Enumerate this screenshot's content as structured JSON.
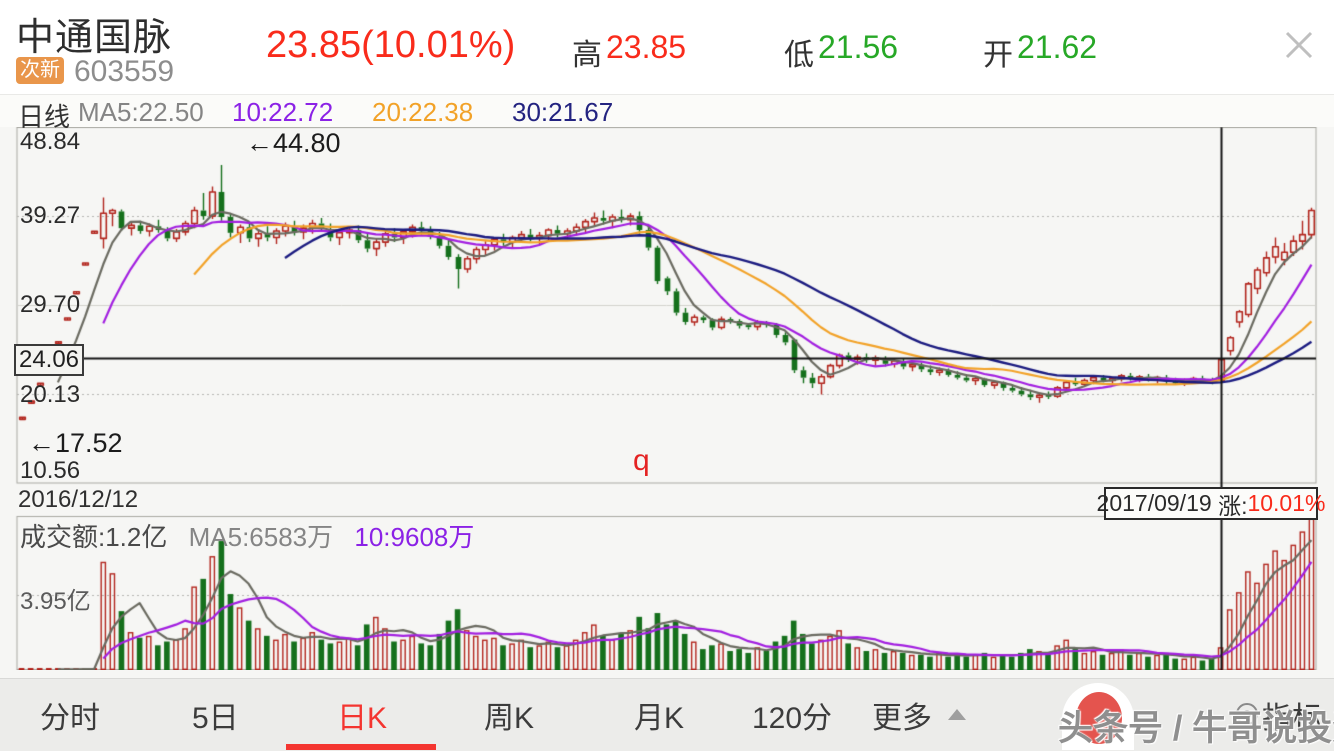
{
  "header": {
    "title": "中通国脉",
    "badge": "次新",
    "code": "603559",
    "price": "23.85",
    "change": "(10.01%)",
    "high_label": "高",
    "high": "23.85",
    "low_label": "低",
    "low": "21.56",
    "open_label": "开",
    "open": "21.62",
    "close_icon": "close-x"
  },
  "ma_legend": {
    "period": "日线",
    "ma5": "MA5:22.50",
    "ma10": "10:22.72",
    "ma20": "20:22.38",
    "ma30": "30:21.67"
  },
  "volume_legend": {
    "amount": "成交额:1.2亿",
    "ma5": "MA5:6583万",
    "ma10": "10:9608万"
  },
  "axis": {
    "y_top": "48.84",
    "y_q3": "39.27",
    "y_mid": "29.70",
    "y_q1": "20.13",
    "y_bottom": "10.56",
    "cross_price": "24.06",
    "vol_gridline": "3.95亿",
    "date_left": "2016/12/12",
    "cross_date": "2017/09/19",
    "cross_change_label": "涨:",
    "cross_change_pct": "10.01%"
  },
  "annotations": {
    "high_point": "←44.80",
    "low_point": "←17.52",
    "stray_char": "q"
  },
  "tabs": [
    {
      "label": "分时"
    },
    {
      "label": "5日"
    },
    {
      "label": "日K",
      "selected": true
    },
    {
      "label": "周K"
    },
    {
      "label": "月K"
    },
    {
      "label": "120分"
    },
    {
      "label": "更多",
      "arrow": "up-triangle"
    },
    {
      "label": "指标",
      "icon": "target-circle"
    }
  ],
  "watermark": {
    "text": "头条号 / 牛哥说投资",
    "logo": "toutiao-red-blob"
  },
  "chart_data": {
    "type": "candlestick+volume",
    "title": "中通国脉 603559 日K",
    "y_range": [
      10.56,
      48.84
    ],
    "y_gridlines_dotted": [
      39.27,
      20.13
    ],
    "y_gridline_solid": 29.7,
    "volume_gridline_yi": 3.95,
    "crosshair": {
      "index": 132,
      "price": 24.06,
      "date": "2017/09/19",
      "pct": "10.01%"
    },
    "point_annotations": [
      {
        "index": 22,
        "price": 44.8,
        "text": "←44.80"
      },
      {
        "index": 0,
        "price": 17.52,
        "text": "←17.52"
      }
    ],
    "colors": {
      "up": "#b2251d",
      "down": "#15701c",
      "ma5": "#6a6a60",
      "ma10": "#a21fe0",
      "ma20": "#f2a228",
      "ma30": "#1b1b80",
      "grid_dotted": "#b5b5b0",
      "grid_solid": "#d2d2cc",
      "border": "#a8a8a2",
      "crosshair": "#141414"
    },
    "candles_ohlc": [
      [
        17.52,
        17.52,
        17.52,
        17.52
      ],
      [
        19.27,
        19.27,
        19.27,
        19.27
      ],
      [
        21.2,
        21.2,
        21.2,
        21.2
      ],
      [
        23.32,
        23.32,
        23.32,
        23.32
      ],
      [
        25.65,
        25.65,
        25.65,
        25.65
      ],
      [
        28.22,
        28.22,
        28.22,
        28.22
      ],
      [
        31.04,
        31.04,
        31.04,
        31.04
      ],
      [
        34.14,
        34.14,
        34.14,
        34.14
      ],
      [
        37.56,
        37.56,
        37.56,
        37.56
      ],
      [
        36.9,
        41.3,
        35.8,
        39.6
      ],
      [
        39.6,
        40.1,
        38.2,
        39.9
      ],
      [
        39.8,
        40.0,
        37.7,
        38.0
      ],
      [
        38.0,
        38.6,
        37.2,
        38.3
      ],
      [
        38.3,
        38.8,
        37.4,
        37.7
      ],
      [
        37.7,
        38.5,
        37.1,
        38.2
      ],
      [
        38.2,
        38.9,
        37.5,
        37.8
      ],
      [
        37.8,
        38.1,
        36.6,
        36.9
      ],
      [
        36.9,
        37.9,
        36.5,
        37.6
      ],
      [
        37.6,
        38.8,
        37.2,
        38.5
      ],
      [
        38.5,
        40.3,
        38.0,
        39.9
      ],
      [
        39.9,
        41.8,
        38.9,
        39.3
      ],
      [
        39.3,
        42.5,
        39.0,
        41.9
      ],
      [
        41.9,
        44.8,
        38.8,
        39.2
      ],
      [
        39.2,
        39.6,
        37.0,
        37.5
      ],
      [
        37.5,
        38.4,
        36.4,
        38.1
      ],
      [
        38.1,
        38.6,
        36.5,
        36.9
      ],
      [
        36.9,
        37.9,
        36.0,
        37.4
      ],
      [
        37.4,
        38.2,
        36.6,
        37.0
      ],
      [
        37.0,
        38.0,
        36.3,
        37.7
      ],
      [
        37.7,
        38.6,
        37.1,
        38.2
      ],
      [
        38.2,
        38.8,
        37.2,
        37.6
      ],
      [
        37.6,
        38.4,
        36.8,
        38.0
      ],
      [
        38.0,
        38.9,
        37.4,
        38.5
      ],
      [
        38.5,
        39.1,
        37.6,
        37.9
      ],
      [
        37.9,
        38.5,
        36.6,
        37.0
      ],
      [
        37.0,
        37.8,
        36.2,
        37.5
      ],
      [
        37.5,
        38.2,
        36.9,
        37.8
      ],
      [
        37.8,
        38.3,
        36.4,
        36.7
      ],
      [
        36.7,
        37.4,
        35.4,
        35.8
      ],
      [
        35.8,
        36.9,
        35.0,
        36.5
      ],
      [
        36.5,
        37.8,
        36.0,
        37.4
      ],
      [
        37.4,
        38.0,
        36.5,
        37.0
      ],
      [
        37.0,
        37.9,
        36.3,
        37.6
      ],
      [
        37.6,
        38.4,
        37.0,
        38.1
      ],
      [
        38.1,
        38.7,
        37.3,
        37.7
      ],
      [
        37.7,
        38.2,
        36.8,
        37.1
      ],
      [
        37.1,
        37.6,
        35.8,
        36.1
      ],
      [
        36.1,
        36.8,
        34.6,
        34.9
      ],
      [
        34.9,
        35.2,
        31.5,
        33.6
      ],
      [
        33.6,
        35.0,
        33.2,
        34.7
      ],
      [
        34.7,
        36.0,
        34.2,
        35.7
      ],
      [
        35.7,
        36.6,
        35.0,
        36.2
      ],
      [
        36.2,
        37.0,
        35.6,
        36.8
      ],
      [
        36.8,
        37.4,
        36.1,
        36.5
      ],
      [
        36.5,
        37.2,
        35.9,
        37.0
      ],
      [
        37.0,
        37.7,
        36.4,
        37.3
      ],
      [
        37.3,
        37.9,
        36.6,
        36.9
      ],
      [
        36.9,
        37.6,
        36.2,
        37.2
      ],
      [
        37.2,
        38.0,
        36.7,
        37.8
      ],
      [
        37.8,
        38.3,
        37.0,
        37.4
      ],
      [
        37.4,
        38.0,
        36.8,
        37.7
      ],
      [
        37.7,
        38.5,
        37.2,
        38.1
      ],
      [
        38.1,
        39.0,
        37.6,
        38.7
      ],
      [
        38.7,
        39.7,
        38.2,
        39.1
      ],
      [
        39.1,
        39.9,
        38.4,
        38.8
      ],
      [
        38.8,
        39.5,
        38.0,
        39.2
      ],
      [
        39.2,
        40.0,
        38.6,
        38.9
      ],
      [
        38.9,
        39.6,
        38.3,
        39.3
      ],
      [
        39.3,
        39.8,
        37.4,
        37.8
      ],
      [
        37.8,
        38.2,
        35.6,
        35.9
      ],
      [
        35.9,
        36.1,
        32.0,
        32.3
      ],
      [
        32.6,
        32.8,
        30.8,
        31.2
      ],
      [
        31.2,
        31.5,
        28.6,
        28.9
      ],
      [
        28.9,
        29.4,
        27.6,
        27.9
      ],
      [
        27.9,
        28.7,
        27.5,
        28.4
      ],
      [
        28.4,
        28.6,
        27.8,
        28.1
      ],
      [
        28.1,
        28.3,
        27.0,
        27.3
      ],
      [
        27.3,
        28.5,
        27.1,
        28.2
      ],
      [
        28.2,
        28.4,
        27.7,
        28.0
      ],
      [
        28.0,
        28.2,
        27.2,
        27.5
      ],
      [
        27.5,
        27.8,
        27.1,
        27.4
      ],
      [
        27.4,
        28.1,
        27.0,
        27.8
      ],
      [
        27.8,
        28.0,
        27.3,
        27.6
      ],
      [
        27.6,
        27.8,
        26.2,
        26.5
      ],
      [
        26.5,
        26.8,
        25.4,
        25.7
      ],
      [
        26.0,
        26.1,
        22.4,
        22.7
      ],
      [
        22.7,
        23.1,
        21.3,
        21.9
      ],
      [
        21.9,
        22.4,
        20.8,
        21.3
      ],
      [
        21.3,
        22.3,
        20.1,
        22.0
      ],
      [
        22.0,
        23.4,
        21.8,
        23.2
      ],
      [
        23.2,
        24.5,
        22.9,
        24.3
      ],
      [
        24.3,
        24.6,
        23.6,
        23.9
      ],
      [
        23.9,
        24.4,
        23.3,
        24.1
      ],
      [
        24.1,
        24.5,
        23.5,
        23.8
      ],
      [
        23.8,
        24.3,
        23.2,
        24.0
      ],
      [
        24.0,
        24.2,
        23.1,
        23.4
      ],
      [
        23.4,
        24.0,
        23.0,
        23.7
      ],
      [
        23.7,
        23.9,
        22.8,
        23.1
      ],
      [
        23.1,
        23.6,
        22.6,
        23.3
      ],
      [
        23.3,
        23.5,
        22.5,
        22.8
      ],
      [
        22.8,
        23.2,
        22.2,
        22.5
      ],
      [
        22.5,
        23.0,
        22.1,
        22.7
      ],
      [
        22.7,
        22.9,
        22.0,
        22.2
      ],
      [
        22.2,
        22.6,
        21.7,
        21.9
      ],
      [
        21.9,
        22.3,
        21.4,
        21.6
      ],
      [
        21.6,
        22.0,
        21.1,
        21.8
      ],
      [
        21.8,
        21.9,
        20.9,
        21.1
      ],
      [
        21.1,
        21.6,
        20.7,
        21.4
      ],
      [
        21.4,
        21.5,
        20.5,
        20.8
      ],
      [
        20.8,
        21.2,
        20.3,
        20.5
      ],
      [
        20.5,
        20.9,
        19.9,
        20.1
      ],
      [
        20.1,
        20.6,
        19.5,
        19.8
      ],
      [
        19.8,
        20.3,
        19.2,
        20.0
      ],
      [
        20.0,
        20.4,
        19.6,
        19.9
      ],
      [
        19.9,
        21.0,
        19.7,
        20.8
      ],
      [
        20.8,
        21.6,
        20.5,
        21.4
      ],
      [
        21.4,
        21.9,
        21.0,
        21.2
      ],
      [
        21.2,
        21.8,
        20.9,
        21.6
      ],
      [
        21.6,
        22.1,
        21.2,
        21.9
      ],
      [
        21.9,
        22.2,
        21.4,
        21.6
      ],
      [
        21.6,
        22.0,
        21.3,
        21.8
      ],
      [
        21.8,
        22.3,
        21.5,
        22.1
      ],
      [
        22.1,
        22.4,
        21.6,
        21.8
      ],
      [
        21.8,
        22.2,
        21.4,
        22.0
      ],
      [
        22.0,
        22.3,
        21.5,
        21.7
      ],
      [
        21.7,
        22.1,
        21.3,
        21.9
      ],
      [
        21.9,
        22.2,
        21.2,
        21.5
      ],
      [
        21.5,
        21.9,
        21.1,
        21.3
      ],
      [
        21.3,
        21.8,
        21.0,
        21.6
      ],
      [
        21.6,
        22.0,
        21.3,
        21.8
      ],
      [
        21.8,
        22.1,
        21.4,
        21.6
      ],
      [
        21.6,
        21.9,
        21.2,
        21.4
      ],
      [
        21.62,
        23.85,
        21.56,
        23.85
      ],
      [
        24.8,
        26.4,
        24.3,
        26.2
      ],
      [
        27.9,
        29.2,
        27.3,
        29.0
      ],
      [
        28.7,
        32.2,
        28.4,
        32.0
      ],
      [
        31.5,
        33.8,
        30.9,
        33.5
      ],
      [
        33.2,
        35.5,
        32.8,
        34.8
      ],
      [
        34.9,
        37.0,
        34.2,
        36.0
      ],
      [
        34.6,
        36.4,
        34.0,
        35.4
      ],
      [
        35.4,
        37.2,
        35.0,
        36.6
      ],
      [
        36.6,
        38.8,
        35.7,
        37.3
      ],
      [
        37.3,
        40.2,
        36.9,
        39.9
      ]
    ],
    "volumes_yi": [
      0.02,
      0.02,
      0.03,
      0.03,
      0.04,
      0.04,
      0.05,
      0.06,
      0.08,
      5.7,
      5.1,
      3.1,
      2.0,
      1.7,
      1.8,
      1.3,
      1.5,
      1.6,
      2.2,
      4.4,
      4.8,
      6.0,
      6.8,
      4.0,
      3.3,
      2.6,
      2.2,
      1.8,
      1.6,
      1.9,
      1.5,
      1.7,
      2.0,
      1.6,
      1.4,
      1.5,
      1.7,
      1.3,
      2.4,
      2.8,
      2.2,
      1.5,
      1.6,
      1.8,
      1.4,
      1.3,
      1.9,
      2.6,
      3.2,
      2.1,
      1.8,
      1.6,
      1.7,
      1.3,
      1.4,
      1.6,
      1.2,
      1.3,
      1.5,
      1.2,
      1.3,
      1.6,
      2.0,
      2.4,
      1.8,
      1.6,
      1.9,
      2.1,
      2.8,
      2.2,
      3.0,
      2.4,
      2.6,
      1.9,
      1.5,
      1.1,
      1.3,
      1.4,
      1.0,
      1.1,
      0.9,
      1.2,
      1.0,
      1.5,
      1.8,
      2.6,
      1.9,
      1.4,
      1.6,
      1.8,
      2.1,
      1.4,
      1.2,
      1.0,
      1.1,
      0.9,
      1.0,
      0.9,
      0.8,
      0.8,
      0.7,
      0.9,
      0.7,
      0.8,
      0.7,
      0.8,
      0.9,
      0.7,
      0.8,
      0.7,
      0.9,
      1.1,
      1.0,
      0.8,
      1.3,
      1.6,
      1.1,
      0.9,
      1.0,
      0.8,
      0.9,
      1.1,
      0.8,
      0.9,
      0.7,
      0.8,
      0.9,
      0.6,
      0.6,
      0.7,
      0.5,
      0.6,
      1.2,
      3.2,
      4.1,
      5.2,
      4.6,
      5.6,
      6.3,
      5.8,
      6.6,
      7.3,
      8.2
    ]
  }
}
